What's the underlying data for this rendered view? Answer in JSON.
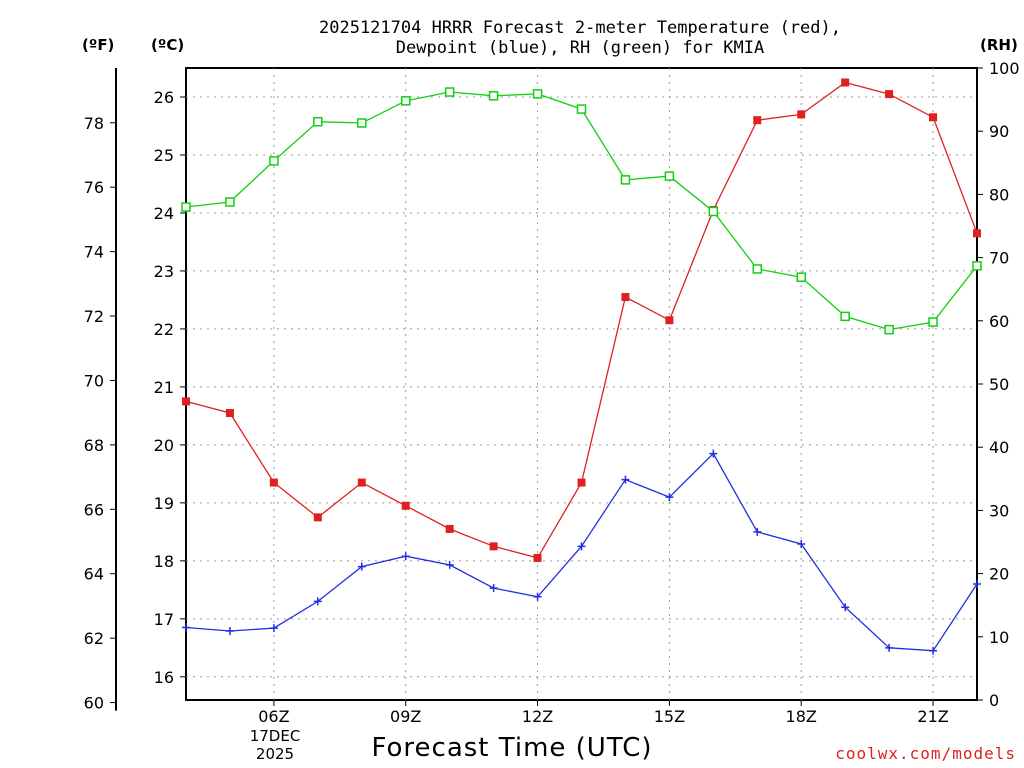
{
  "title_line1": "2025121704 HRRR Forecast 2-meter Temperature (red),",
  "title_line2": "Dewpoint (blue), RH (green) for KMIA",
  "unit_f": "(ºF)",
  "unit_c": "(ºC)",
  "unit_rh": "(RH)",
  "xlabel": "Forecast Time (UTC)",
  "credit": "coolwx.com/models",
  "date_line1": "17DEC",
  "date_line2": "2025",
  "colors": {
    "temperature": "#e02020",
    "dewpoint": "#2030e0",
    "rh": "#10d010"
  },
  "chart_data": {
    "type": "line",
    "title": "2025121704 HRRR Forecast 2-meter Temperature (red), Dewpoint (blue), RH (green) for KMIA",
    "xlabel": "Forecast Time (UTC)",
    "x": [
      4,
      5,
      6,
      7,
      8,
      9,
      10,
      11,
      12,
      13,
      14,
      15,
      16,
      17,
      18,
      19,
      20,
      21,
      22
    ],
    "xlim": [
      4,
      22
    ],
    "x_ticks": [
      6,
      9,
      12,
      15,
      18,
      21
    ],
    "x_tick_labels": [
      "06Z",
      "09Z",
      "12Z",
      "15Z",
      "18Z",
      "21Z"
    ],
    "y_celsius_range": [
      15.6,
      26.5
    ],
    "y_celsius_ticks": [
      16,
      17,
      18,
      19,
      20,
      21,
      22,
      23,
      24,
      25,
      26
    ],
    "y_fahrenheit_ticks": [
      60,
      62,
      64,
      66,
      68,
      70,
      72,
      74,
      76,
      78
    ],
    "rh_range": [
      0,
      100
    ],
    "rh_ticks": [
      0,
      10,
      20,
      30,
      40,
      50,
      60,
      70,
      80,
      90,
      100
    ],
    "grid": true,
    "series": [
      {
        "name": "Temperature",
        "axis": "celsius",
        "values": [
          20.75,
          20.55,
          19.35,
          18.75,
          19.35,
          18.95,
          18.55,
          18.25,
          18.05,
          19.35,
          22.55,
          22.15,
          24.05,
          25.6,
          25.7,
          26.25,
          26.05,
          25.65,
          23.65
        ]
      },
      {
        "name": "Dewpoint",
        "axis": "celsius",
        "values": [
          16.85,
          16.79,
          16.84,
          17.3,
          17.9,
          18.08,
          17.93,
          17.53,
          17.38,
          18.25,
          19.4,
          19.1,
          19.85,
          18.5,
          18.29,
          17.2,
          16.5,
          16.45,
          17.6
        ]
      },
      {
        "name": "Relative Humidity",
        "axis": "rh",
        "values": [
          78.0,
          78.8,
          85.3,
          91.5,
          91.3,
          94.8,
          96.2,
          95.6,
          95.9,
          93.5,
          82.3,
          82.9,
          77.3,
          68.2,
          66.9,
          60.7,
          58.6,
          59.8,
          68.7
        ]
      }
    ]
  }
}
